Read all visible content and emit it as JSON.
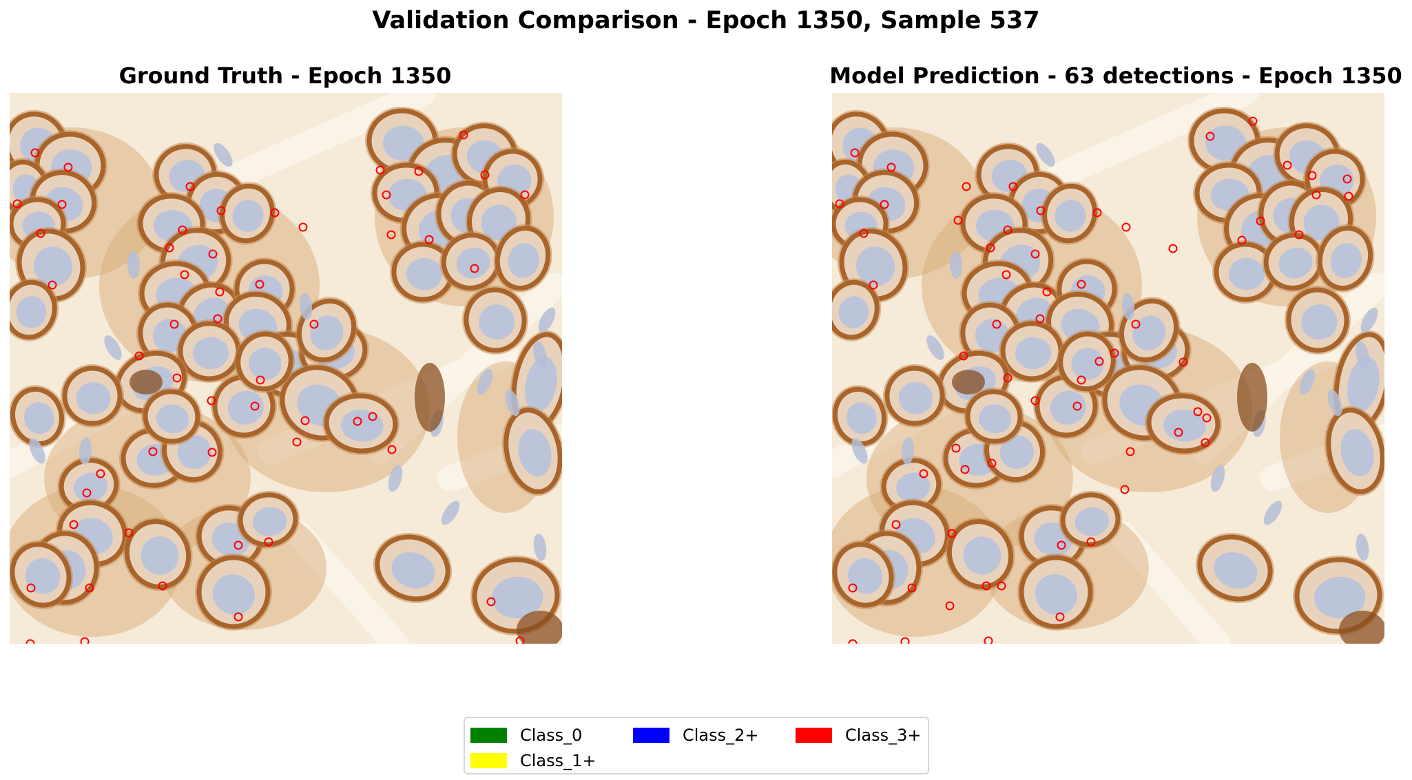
{
  "figure": {
    "title": "Validation Comparison - Epoch 1350, Sample 537"
  },
  "panels": {
    "left": {
      "title": "Ground Truth  - Epoch 1350"
    },
    "right": {
      "title": "Model Prediction - 63 detections - Epoch 1350"
    }
  },
  "legend": {
    "items": [
      {
        "label": "Class_0",
        "color": "#008000"
      },
      {
        "label": "Class_1+",
        "color": "#ffff00"
      },
      {
        "label": "Class_2+",
        "color": "#0000ff"
      },
      {
        "label": "Class_3+",
        "color": "#ff0000"
      }
    ]
  },
  "colors": {
    "background_tissue": "#f6ead8",
    "membrane_stain": "#a8642a",
    "nucleus": "#b9c3da",
    "marker_class_0": "#008000",
    "marker_class_3": "#ff0000"
  }
}
